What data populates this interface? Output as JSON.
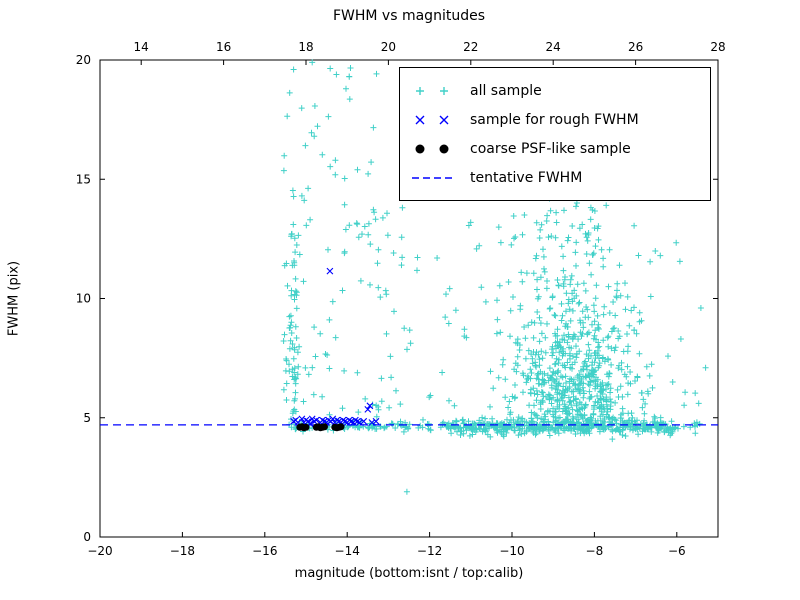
{
  "title": "FWHM vs magnitudes",
  "axes": {
    "xlabel": "magnitude (bottom:isnt / top:calib)",
    "ylabel": "FWHM (pix)",
    "x_range": [
      -20,
      -5
    ],
    "y_range": [
      0,
      20
    ],
    "x_ticks": [
      -20,
      -18,
      -16,
      -14,
      -12,
      -10,
      -8,
      -6
    ],
    "y_ticks": [
      0,
      5,
      10,
      15,
      20
    ],
    "top_ticks": [
      14,
      16,
      18,
      20,
      22,
      24,
      26,
      28
    ],
    "top_offset": 33
  },
  "colors": {
    "all_sample": "#40d0c8",
    "rough_fwhm": "#0000ff",
    "psf": "#000000",
    "tentative": "#0000ff",
    "axis": "#000000"
  },
  "legend": {
    "items": [
      {
        "label": "all sample",
        "marker": "plus"
      },
      {
        "label": "sample for rough FWHM",
        "marker": "cross"
      },
      {
        "label": "coarse PSF-like sample",
        "marker": "dot"
      },
      {
        "label": "tentative FWHM",
        "marker": "dash"
      }
    ]
  },
  "chart_data": {
    "type": "scatter",
    "title": "FWHM vs magnitudes",
    "xlabel": "magnitude (bottom:isnt / top:calib)",
    "ylabel": "FWHM (pix)",
    "xlim": [
      -20,
      -5
    ],
    "ylim": [
      0,
      20
    ],
    "top_axis_label_offset": 33,
    "tentative_fwhm": 4.7,
    "seed": 42,
    "series": [
      {
        "name": "all sample",
        "marker": "plus",
        "color_key": "all_sample",
        "clusters": [
          {
            "count": 240,
            "x": {
              "d": "uniform",
              "p": [
                -15.45,
                -5.4
              ]
            },
            "y": {
              "d": "normal",
              "p": [
                4.65,
                0.1
              ]
            }
          },
          {
            "count": 320,
            "x": {
              "d": "uniform",
              "p": [
                -11.6,
                -6.1
              ]
            },
            "y": {
              "d": "normal",
              "p": [
                4.6,
                0.17
              ]
            }
          },
          {
            "count": 60,
            "x": {
              "d": "normal",
              "p": [
                -15.32,
                0.09
              ]
            },
            "y": {
              "d": "uniform",
              "p": [
                4.8,
                12.8
              ]
            }
          },
          {
            "count": 85,
            "x": {
              "d": "uniform",
              "p": [
                -15.55,
                -13.2
              ]
            },
            "y": {
              "d": "uniform",
              "p": [
                4.8,
                19.8
              ]
            }
          },
          {
            "count": 620,
            "x": {
              "d": "normal",
              "p": [
                -8.5,
                0.85
              ]
            },
            "y": {
              "d": "halfnormal",
              "p": [
                4.65,
                2.7
              ]
            }
          },
          {
            "count": 110,
            "x": {
              "d": "normal",
              "p": [
                -8.9,
                0.85
              ]
            },
            "y": {
              "d": "uniform",
              "p": [
                8.0,
                15.3
              ]
            }
          },
          {
            "count": 60,
            "x": {
              "d": "uniform",
              "p": [
                -13.3,
                -5.4
              ]
            },
            "y": {
              "d": "uniform",
              "p": [
                4.9,
                13.5
              ]
            }
          },
          {
            "count": 22,
            "x": {
              "d": "normal",
              "p": [
                -13.0,
                0.25
              ]
            },
            "y": {
              "d": "uniform",
              "p": [
                5.0,
                14.5
              ]
            }
          }
        ],
        "extra_points": [
          [
            -12.55,
            1.9
          ],
          [
            -15.3,
            19.6
          ],
          [
            -14.85,
            19.9
          ],
          [
            -13.95,
            19.3
          ],
          [
            -14.8,
            16.8
          ],
          [
            -13.75,
            15.4
          ],
          [
            -15.1,
            14.3
          ],
          [
            -14.9,
            13.3
          ],
          [
            -10.35,
            14.7
          ],
          [
            -9.7,
            13.5
          ],
          [
            -9.3,
            14.9
          ],
          [
            -6.4,
            11.8
          ],
          [
            -5.55,
            4.35
          ],
          [
            -5.3,
            7.1
          ],
          [
            -6.9,
            9.4
          ],
          [
            -6.1,
            6.5
          ],
          [
            -5.9,
            8.3
          ]
        ]
      },
      {
        "name": "sample for rough FWHM",
        "marker": "cross",
        "color_key": "rough_fwhm",
        "points": [
          [
            -15.3,
            4.85
          ],
          [
            -15.25,
            4.9
          ],
          [
            -15.2,
            4.8
          ],
          [
            -15.1,
            4.95
          ],
          [
            -15.05,
            4.8
          ],
          [
            -15.0,
            4.9
          ],
          [
            -14.95,
            4.85
          ],
          [
            -14.9,
            4.75
          ],
          [
            -14.85,
            4.95
          ],
          [
            -14.8,
            4.85
          ],
          [
            -14.75,
            4.9
          ],
          [
            -14.65,
            4.8
          ],
          [
            -14.6,
            4.9
          ],
          [
            -14.55,
            4.85
          ],
          [
            -14.5,
            4.8
          ],
          [
            -14.45,
            4.9
          ],
          [
            -14.42,
            11.15
          ],
          [
            -14.4,
            4.85
          ],
          [
            -14.35,
            4.95
          ],
          [
            -14.3,
            4.8
          ],
          [
            -14.25,
            4.9
          ],
          [
            -14.2,
            4.85
          ],
          [
            -14.15,
            4.8
          ],
          [
            -14.1,
            4.9
          ],
          [
            -14.05,
            4.85
          ],
          [
            -14.0,
            4.8
          ],
          [
            -13.95,
            4.9
          ],
          [
            -13.9,
            4.85
          ],
          [
            -13.85,
            4.8
          ],
          [
            -13.8,
            4.9
          ],
          [
            -13.75,
            4.85
          ],
          [
            -13.7,
            4.8
          ],
          [
            -13.6,
            4.85
          ],
          [
            -13.5,
            5.35
          ],
          [
            -13.45,
            5.5
          ],
          [
            -13.4,
            4.8
          ],
          [
            -13.3,
            4.85
          ]
        ]
      },
      {
        "name": "coarse PSF-like sample",
        "marker": "dot",
        "color_key": "psf",
        "points": [
          [
            -15.15,
            4.6
          ],
          [
            -15.1,
            4.62
          ],
          [
            -15.05,
            4.58
          ],
          [
            -15.0,
            4.6
          ],
          [
            -14.75,
            4.6
          ],
          [
            -14.7,
            4.62
          ],
          [
            -14.65,
            4.58
          ],
          [
            -14.6,
            4.6
          ],
          [
            -14.55,
            4.62
          ],
          [
            -14.3,
            4.6
          ],
          [
            -14.25,
            4.58
          ],
          [
            -14.2,
            4.6
          ],
          [
            -14.15,
            4.62
          ]
        ]
      },
      {
        "name": "tentative FWHM",
        "type": "hline",
        "marker": "dash",
        "color_key": "tentative",
        "y": 4.7
      }
    ]
  }
}
